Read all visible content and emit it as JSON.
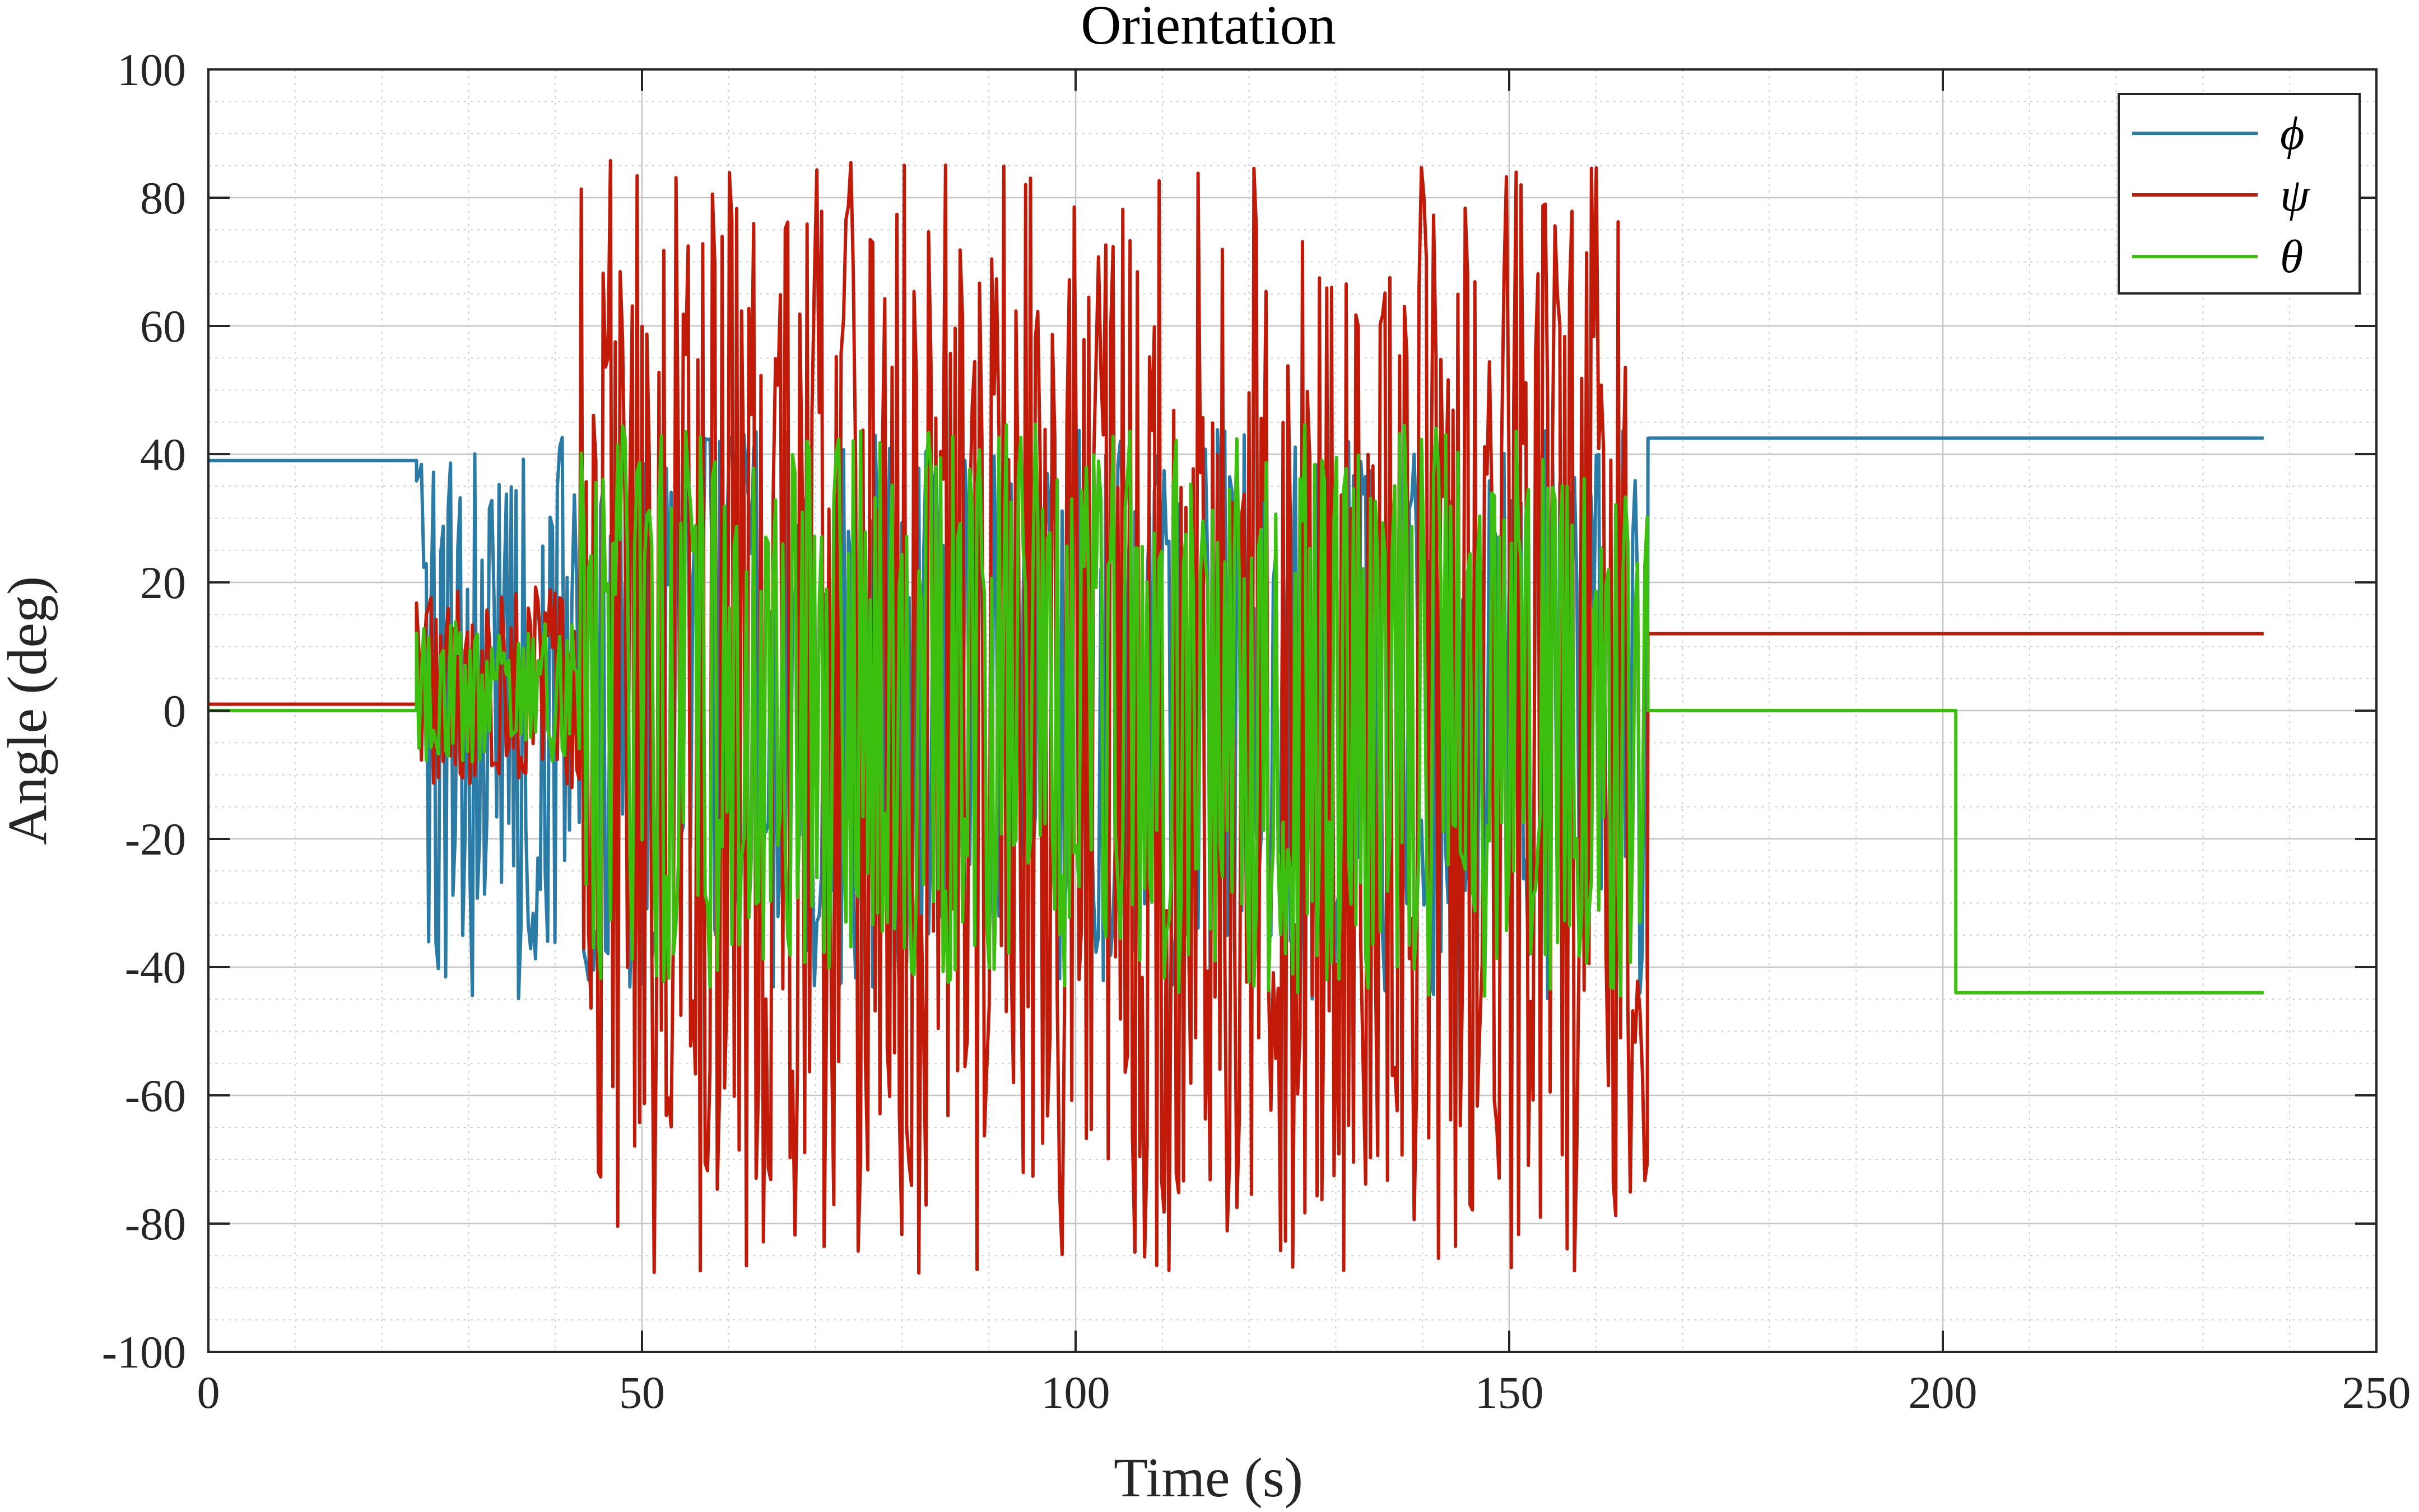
{
  "chart_data": {
    "type": "line",
    "title": "Orientation",
    "xlabel": "Time (s)",
    "ylabel": "Angle (deg)",
    "xlim": [
      0,
      250
    ],
    "ylim": [
      -100,
      100
    ],
    "xticks": [
      0,
      50,
      100,
      150,
      200,
      250
    ],
    "yticks": [
      -100,
      -80,
      -60,
      -40,
      -20,
      0,
      20,
      40,
      60,
      80,
      100
    ],
    "x_tick_labels": [
      "0",
      "50",
      "100",
      "150",
      "200",
      "250"
    ],
    "y_tick_labels": [
      "-100",
      "-80",
      "-60",
      "-40",
      "-20",
      "0",
      "20",
      "40",
      "60",
      "80",
      "100"
    ],
    "grid": true,
    "minor_grid": true,
    "legend_position": "top-right",
    "series": [
      {
        "name": "ϕ",
        "color": "#2a7ba5",
        "segments": [
          {
            "type": "constant",
            "x": [
              0,
              24
            ],
            "value": 39
          },
          {
            "type": "oscillation",
            "x": [
              24,
              43
            ],
            "min": -45,
            "max": 44
          },
          {
            "type": "oscillation",
            "x": [
              43,
              166
            ],
            "min": -45,
            "max": 44
          },
          {
            "type": "constant",
            "x": [
              166,
              237
            ],
            "value": 42.5
          }
        ]
      },
      {
        "name": "ψ",
        "color": "#c21a09",
        "segments": [
          {
            "type": "constant",
            "x": [
              0,
              24
            ],
            "value": 1
          },
          {
            "type": "oscillation",
            "x": [
              24,
              43
            ],
            "min": -12,
            "max": 20
          },
          {
            "type": "oscillation",
            "x": [
              43,
              166
            ],
            "min": -88,
            "max": 86
          },
          {
            "type": "constant",
            "x": [
              166,
              237
            ],
            "value": 12
          }
        ]
      },
      {
        "name": "θ",
        "color": "#3cbf0e",
        "segments": [
          {
            "type": "constant",
            "x": [
              0,
              24
            ],
            "value": 0
          },
          {
            "type": "oscillation",
            "x": [
              24,
              43
            ],
            "min": -8,
            "max": 14
          },
          {
            "type": "oscillation",
            "x": [
              43,
              166
            ],
            "min": -45,
            "max": 45
          },
          {
            "type": "constant",
            "x": [
              166,
              237
            ],
            "values": [
              0,
              -44
            ]
          }
        ]
      }
    ]
  }
}
